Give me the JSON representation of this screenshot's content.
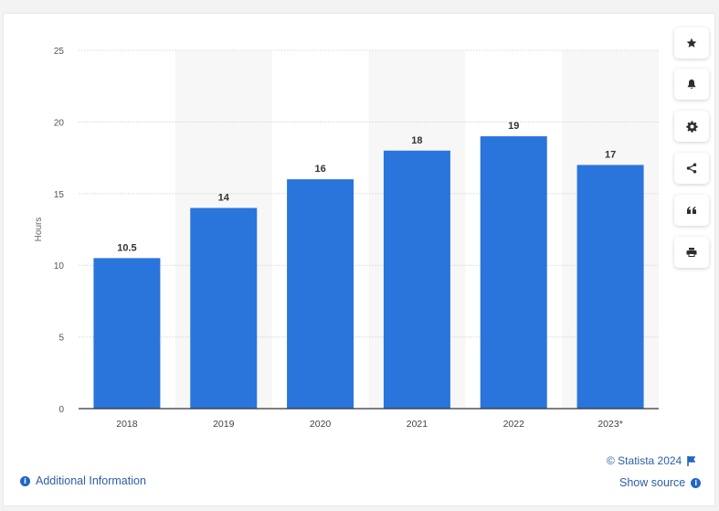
{
  "chart_data": {
    "type": "bar",
    "categories": [
      "2018",
      "2019",
      "2020",
      "2021",
      "2022",
      "2023*"
    ],
    "values": [
      10.5,
      14,
      16,
      18,
      19,
      17
    ],
    "value_labels": [
      "10.5",
      "14",
      "16",
      "18",
      "19",
      "17"
    ],
    "ylabel": "Hours",
    "ylim": [
      0,
      25
    ],
    "yticks": [
      "0",
      "5",
      "10",
      "15",
      "20",
      "25"
    ],
    "ytick_values": [
      0,
      5,
      10,
      15,
      20,
      25
    ],
    "grid": true,
    "bar_color": "#2a75dc",
    "band_color": "#f7f7f7"
  },
  "toolbar": {
    "icons": [
      "star-icon",
      "bell-icon",
      "gear-icon",
      "share-icon",
      "quote-icon",
      "print-icon"
    ]
  },
  "footer": {
    "additional_info": "Additional Information",
    "credit": "© Statista 2024",
    "show_source": "Show source"
  },
  "colors": {
    "accent": "#1f66c7",
    "link": "#2a5fa6"
  }
}
